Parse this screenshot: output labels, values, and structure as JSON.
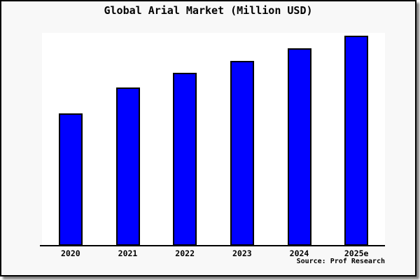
{
  "page": {
    "source_label": "Source: Prof Research"
  },
  "colors": {
    "bar": "#0000ff",
    "bar_border": "#000000",
    "page_bg": "#f8f8f8",
    "plot_bg": "#ffffff",
    "axis": "#000000",
    "text": "#000000"
  },
  "chart_data": {
    "type": "bar",
    "title": "Global Arial Market (Million USD)",
    "categories": [
      "2020",
      "2021",
      "2022",
      "2023",
      "2024",
      "2025e"
    ],
    "values": [
      63,
      75.3,
      82.3,
      88,
      94,
      100
    ],
    "xlabel": "",
    "ylabel": "",
    "ylim": [
      0,
      101.3
    ],
    "grid": false,
    "legend": false,
    "y_axis_shown": false,
    "note": "No y-axis or value labels are shown; values are relative units estimated from bar heights with 2025e = 100"
  }
}
